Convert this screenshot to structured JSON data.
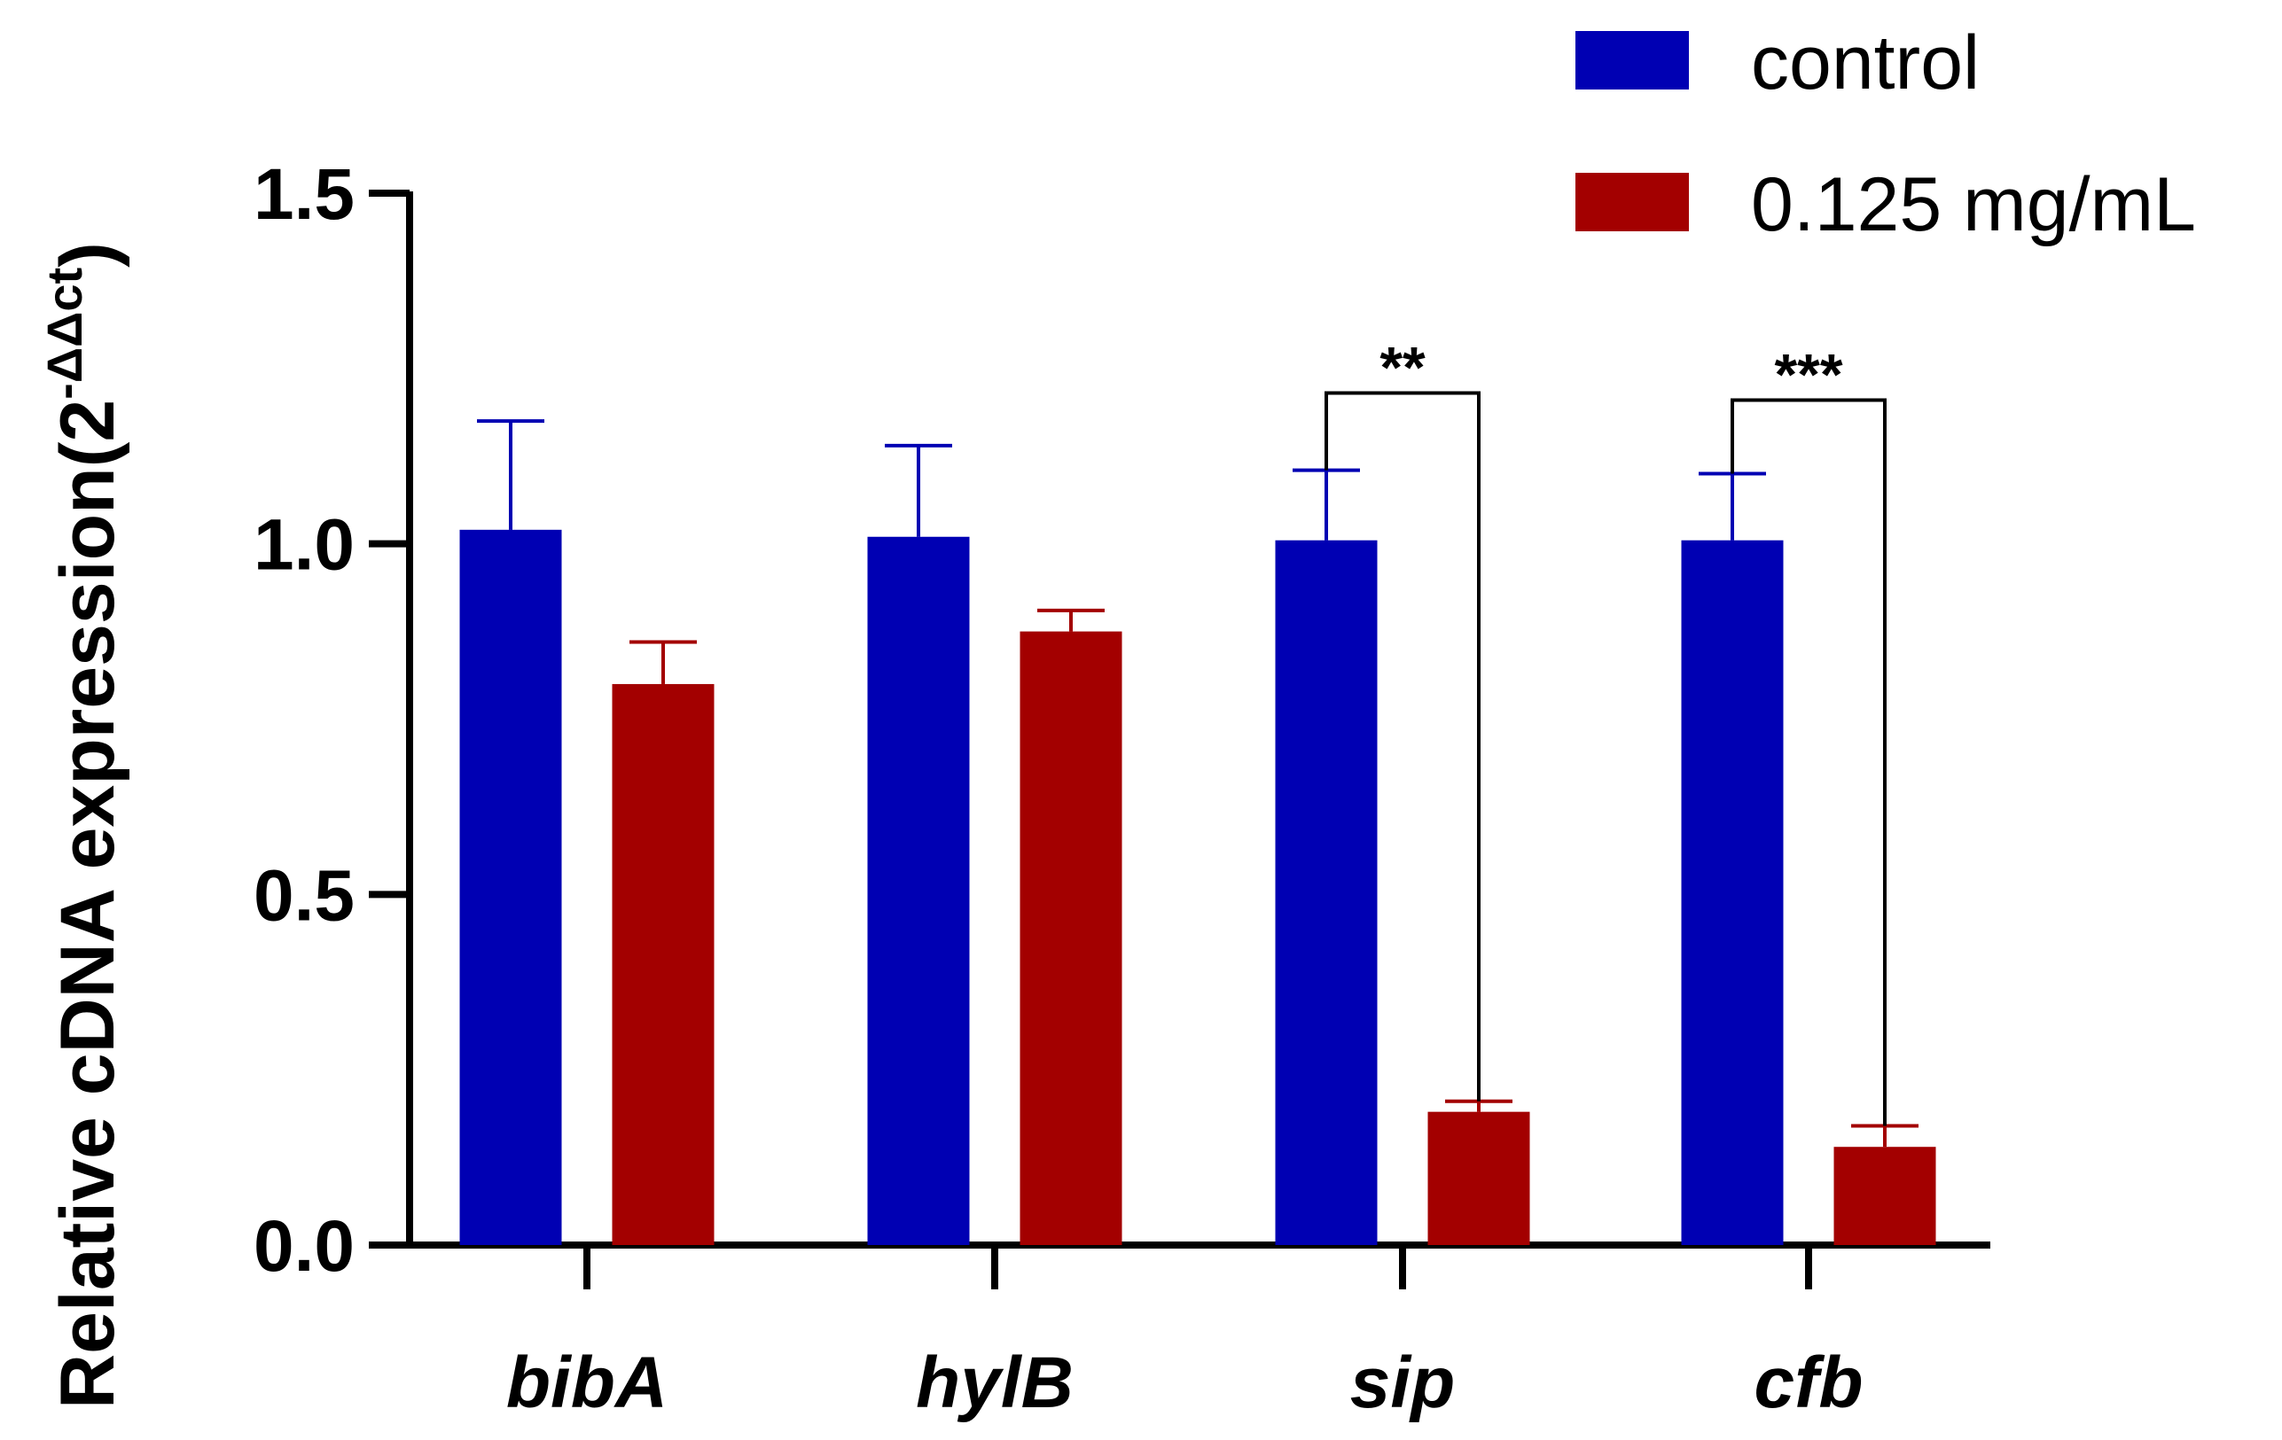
{
  "chart_data": {
    "type": "bar",
    "ylabel_main": "Relative cDNA expression(2",
    "ylabel_sup": "-ΔΔct",
    "ylabel_close": ")",
    "xlabel": "",
    "ylim": [
      0,
      1.5
    ],
    "yticks": [
      "0.0",
      "0.5",
      "1.0",
      "1.5"
    ],
    "ytick_values": [
      0,
      0.5,
      1.0,
      1.5
    ],
    "categories": [
      "bibA",
      "hylB",
      "sip",
      "cfb"
    ],
    "series": [
      {
        "name": "control",
        "color": "#0000b3",
        "values": [
          1.02,
          1.01,
          1.005,
          1.005
        ],
        "errors": [
          0.155,
          0.13,
          0.1,
          0.095
        ]
      },
      {
        "name": "0.125 mg/mL",
        "color": "#a30000",
        "values": [
          0.8,
          0.875,
          0.19,
          0.14
        ],
        "errors": [
          0.06,
          0.03,
          0.015,
          0.03
        ]
      }
    ],
    "significance": [
      {
        "category": "sip",
        "label": "**",
        "level": 1.215
      },
      {
        "category": "cfb",
        "label": "***",
        "level": 1.205
      }
    ],
    "legend_position": "top-right",
    "grid": false
  }
}
